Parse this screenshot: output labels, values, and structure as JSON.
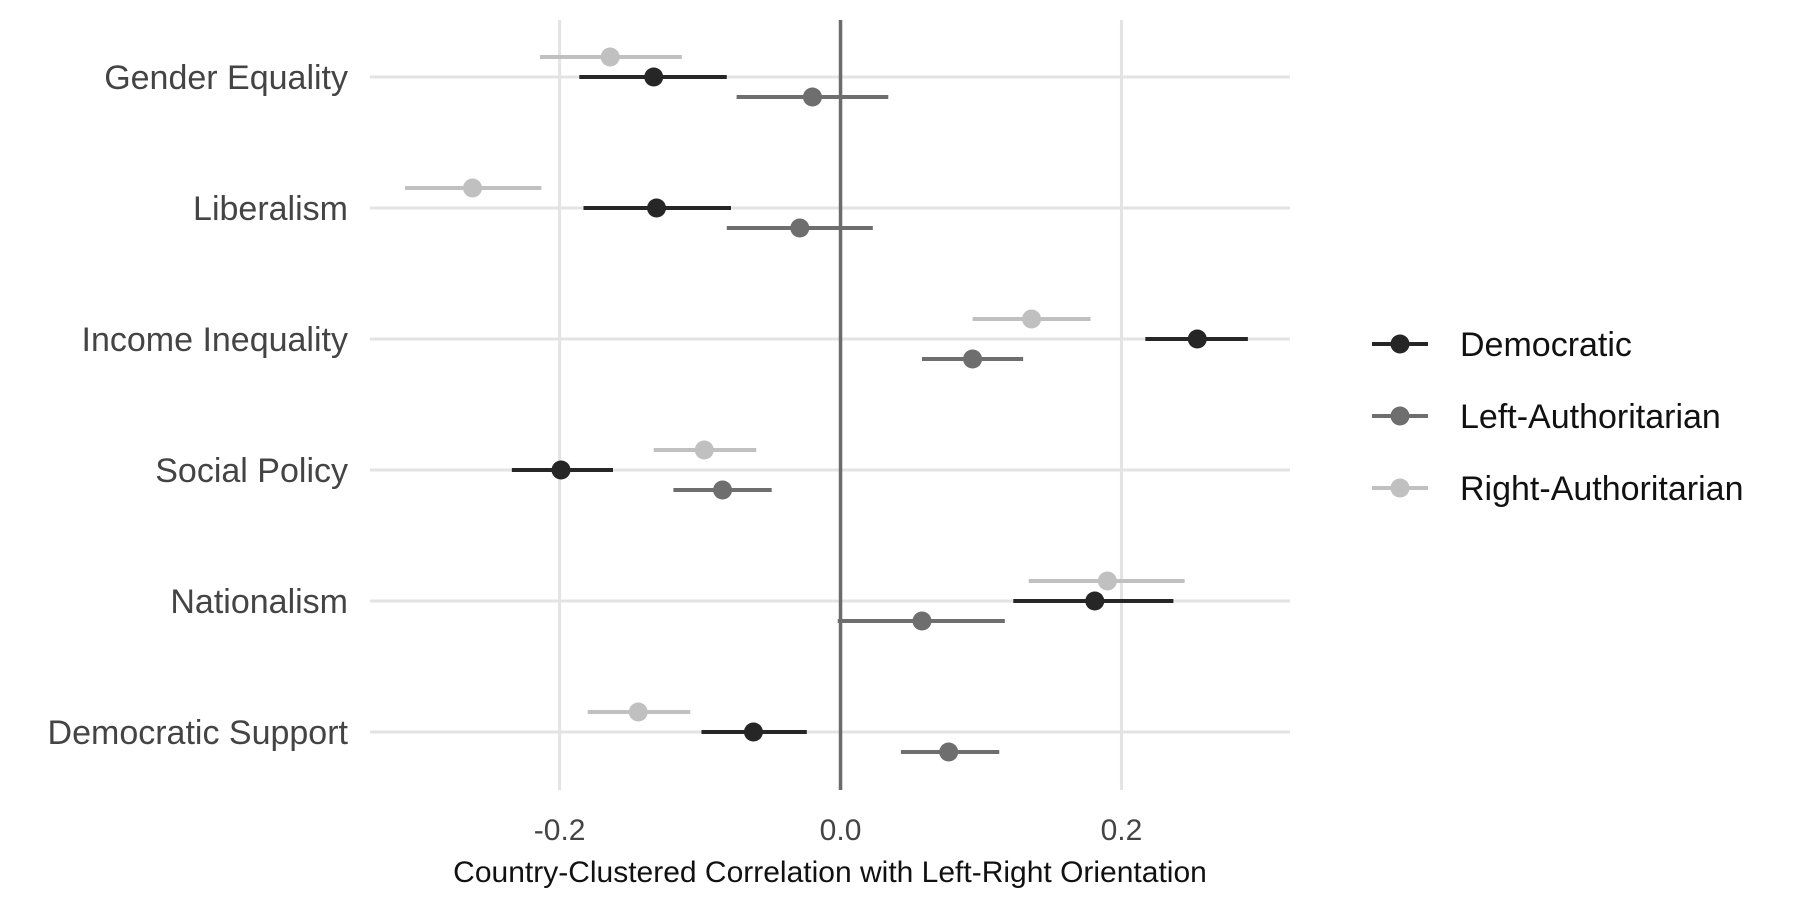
{
  "chart_data": {
    "type": "dot-whisker",
    "xlabel": "Country-Clustered Correlation with Left-Right Orientation",
    "xlim": [
      -0.335,
      0.32
    ],
    "xticks": [
      -0.2,
      0.0,
      0.2
    ],
    "xtick_labels": [
      "-0.2",
      "0.0",
      "0.2"
    ],
    "zero_line": 0.0,
    "grid": true,
    "legend_position": "right",
    "categories": [
      "Gender Equality",
      "Liberalism",
      "Income Inequality",
      "Social Policy",
      "Nationalism",
      "Democratic Support"
    ],
    "series": [
      {
        "name": "Democratic",
        "color": "#262626",
        "estimate": [
          -0.133,
          -0.131,
          0.254,
          -0.199,
          0.181,
          -0.062
        ],
        "lower": [
          -0.186,
          -0.183,
          0.217,
          -0.234,
          0.123,
          -0.099
        ],
        "upper": [
          -0.081,
          -0.078,
          0.29,
          -0.162,
          0.237,
          -0.024
        ]
      },
      {
        "name": "Left-Authoritarian",
        "color": "#6e6e6e",
        "estimate": [
          -0.02,
          -0.029,
          0.094,
          -0.084,
          0.058,
          0.077
        ],
        "lower": [
          -0.074,
          -0.081,
          0.058,
          -0.119,
          -0.002,
          0.043
        ],
        "upper": [
          0.034,
          0.023,
          0.13,
          -0.049,
          0.117,
          0.113
        ]
      },
      {
        "name": "Right-Authoritarian",
        "color": "#c0c0c0",
        "estimate": [
          -0.164,
          -0.262,
          0.136,
          -0.097,
          0.19,
          -0.144
        ],
        "lower": [
          -0.214,
          -0.31,
          0.094,
          -0.133,
          0.134,
          -0.18
        ],
        "upper": [
          -0.113,
          -0.213,
          0.178,
          -0.06,
          0.245,
          -0.107
        ]
      }
    ]
  }
}
